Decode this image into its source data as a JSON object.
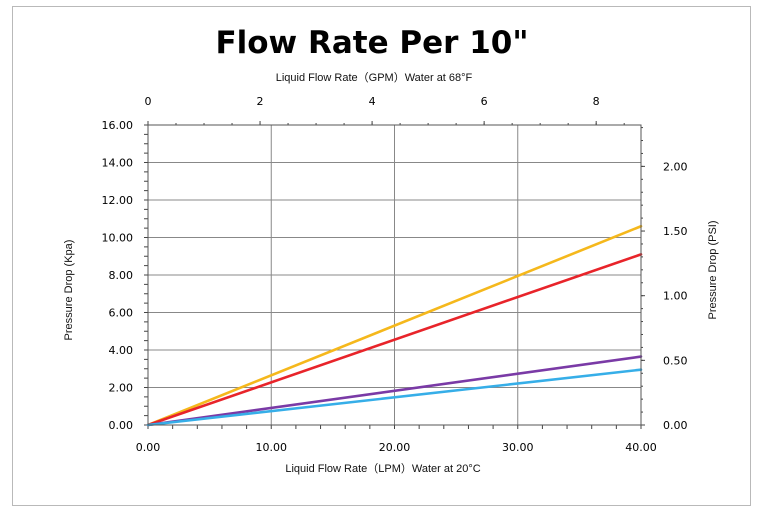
{
  "chart_data": {
    "type": "line",
    "title": "Flow Rate Per 10\"",
    "top_axis_label": "Liquid Flow Rate（GPM）Water  at  68°F",
    "xlabel": "Liquid Flow Rate（LPM）Water  at  20°C",
    "ylabel": "Pressure Drop  (Kpa)",
    "y2label": "Pressure Drop  (PSI)",
    "xlim": [
      0,
      40
    ],
    "ylim": [
      0,
      16
    ],
    "x2lim": [
      0,
      8.8
    ],
    "y2lim": [
      0,
      2.32
    ],
    "x_ticks": [
      "0.00",
      "10.00",
      "20.00",
      "30.00",
      "40.00"
    ],
    "y_ticks": [
      "0.00",
      "2.00",
      "4.00",
      "6.00",
      "8.00",
      "10.00",
      "12.00",
      "14.00",
      "16.00"
    ],
    "x2_ticks": [
      "0",
      "2",
      "4",
      "6",
      "8"
    ],
    "y2_ticks": [
      "0.00",
      "0.50",
      "1.00",
      "1.50",
      "2.00"
    ],
    "grid": true,
    "series": [
      {
        "color": "#f5b81c",
        "x": [
          0,
          40
        ],
        "y": [
          0,
          10.6
        ]
      },
      {
        "color": "#e8242a",
        "x": [
          0,
          40
        ],
        "y": [
          0,
          9.1
        ]
      },
      {
        "color": "#7a3aa6",
        "x": [
          0,
          40
        ],
        "y": [
          0,
          3.65
        ]
      },
      {
        "color": "#36aee8",
        "x": [
          0,
          40
        ],
        "y": [
          0,
          2.95
        ]
      }
    ]
  }
}
